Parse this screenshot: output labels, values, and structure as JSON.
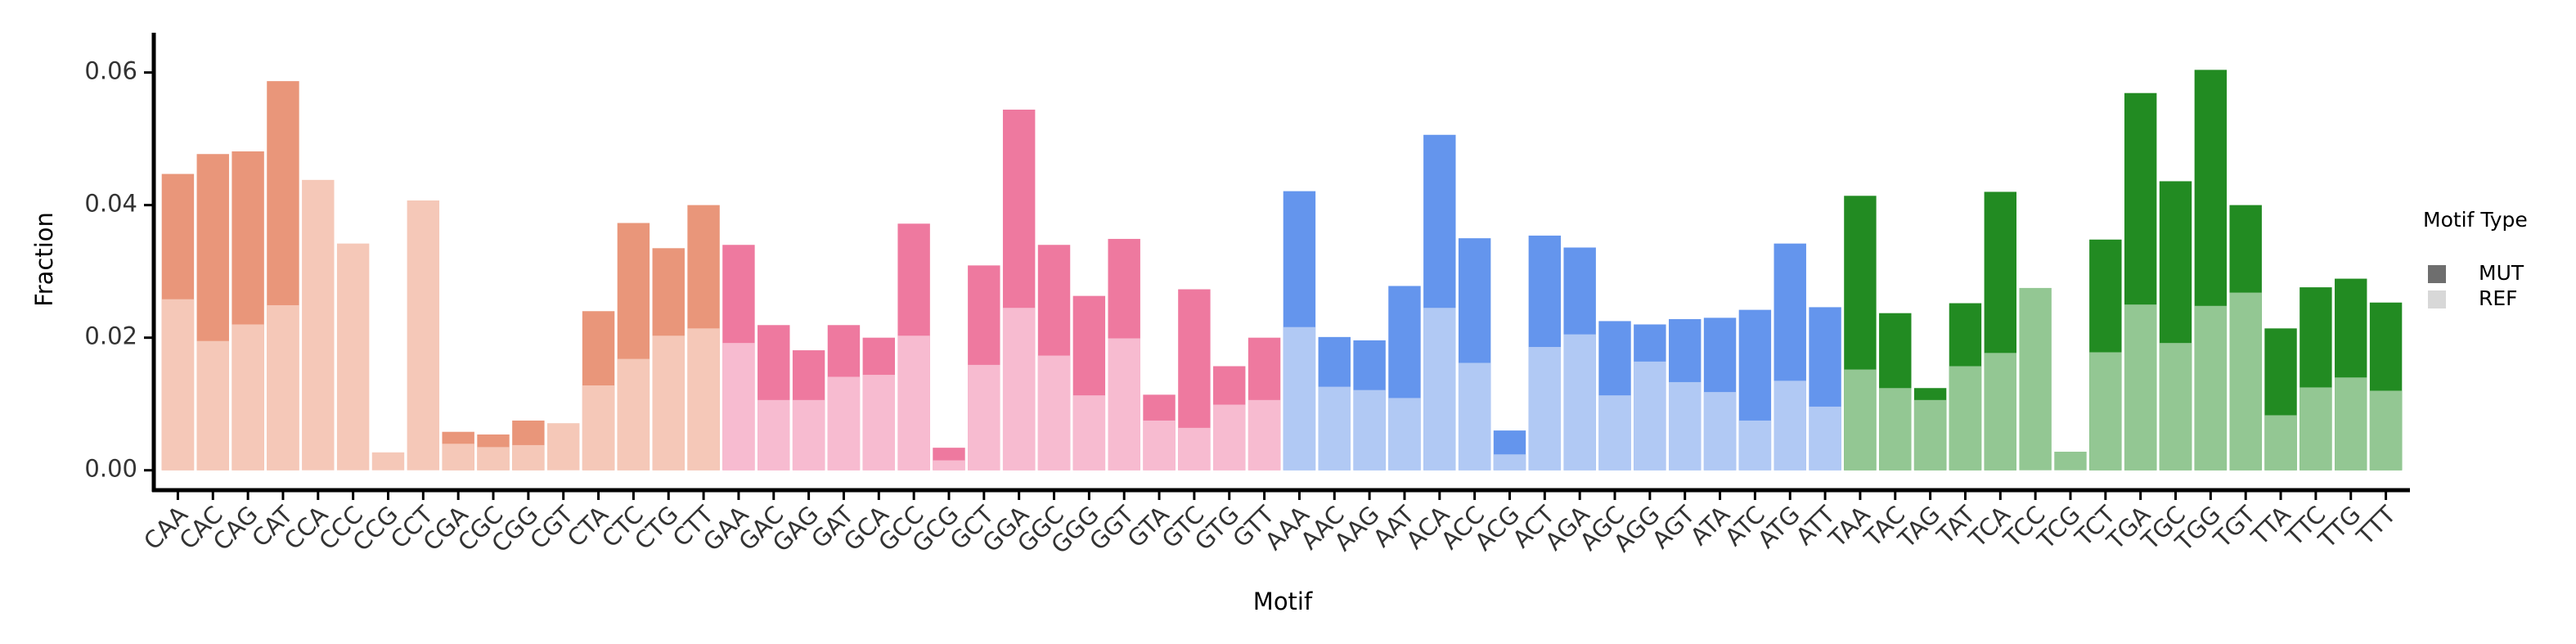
{
  "chart_data": {
    "type": "bar",
    "x_label": "Motif",
    "y_label": "Fraction",
    "legend_title": "Motif Type",
    "categories": [
      "CAA",
      "CAC",
      "CAG",
      "CAT",
      "CCA",
      "CCC",
      "CCG",
      "CCT",
      "CGA",
      "CGC",
      "CGG",
      "CGT",
      "CTA",
      "CTC",
      "CTG",
      "CTT",
      "GAA",
      "GAC",
      "GAG",
      "GAT",
      "GCA",
      "GCC",
      "GCG",
      "GCT",
      "GGA",
      "GGC",
      "GGG",
      "GGT",
      "GTA",
      "GTC",
      "GTG",
      "GTT",
      "AAA",
      "AAC",
      "AAG",
      "AAT",
      "ACA",
      "ACC",
      "ACG",
      "ACT",
      "AGA",
      "AGC",
      "AGG",
      "AGT",
      "ATA",
      "ATC",
      "ATG",
      "ATT",
      "TAA",
      "TAC",
      "TAG",
      "TAT",
      "TCA",
      "TCC",
      "TCG",
      "TCT",
      "TGA",
      "TGC",
      "TGG",
      "TGT",
      "TTA",
      "TTC",
      "TTG",
      "TTT"
    ],
    "series": [
      {
        "name": "MUT",
        "color": "#6e6e6e",
        "colors": [
          "#e9967a",
          "#ee799f",
          "#6495ed",
          "#228b22"
        ],
        "values": [
          0.0447,
          0.0477,
          0.0481,
          0.0587,
          null,
          null,
          null,
          null,
          0.0058,
          0.0054,
          0.0075,
          null,
          0.024,
          0.0373,
          0.0335,
          0.04,
          0.034,
          0.0219,
          0.0181,
          0.0219,
          0.02,
          0.0372,
          0.0034,
          0.0309,
          0.0544,
          0.034,
          0.0263,
          0.0349,
          0.0114,
          0.0273,
          0.0157,
          0.02,
          0.0421,
          0.0201,
          0.0196,
          0.0278,
          0.0506,
          0.035,
          0.006,
          0.0354,
          0.0336,
          0.0225,
          0.022,
          0.0228,
          0.023,
          0.0242,
          0.0342,
          0.0246,
          0.0414,
          0.0237,
          0.0124,
          0.0252,
          0.042,
          null,
          null,
          0.0348,
          0.0569,
          0.0436,
          0.0604,
          0.04,
          0.0214,
          0.0276,
          0.0289,
          0.0253
        ]
      },
      {
        "name": "REF",
        "color": "#d8d8d8",
        "colors": [
          "#f5c8b8",
          "#f7bbd0",
          "#b1c9f4",
          "#93c793"
        ],
        "values": [
          0.0258,
          0.0195,
          0.022,
          0.0249,
          0.0438,
          0.0342,
          0.0027,
          0.0407,
          0.004,
          0.0035,
          0.0038,
          0.0071,
          0.0128,
          0.0168,
          0.0203,
          0.0214,
          0.0192,
          0.0106,
          0.0106,
          0.0141,
          0.0144,
          0.0203,
          0.0015,
          0.0159,
          0.0245,
          0.0173,
          0.0113,
          0.0199,
          0.0075,
          0.0064,
          0.0099,
          0.0106,
          0.0216,
          0.0126,
          0.0121,
          0.0109,
          0.0245,
          0.0162,
          0.0024,
          0.0186,
          0.0205,
          0.0113,
          0.0164,
          0.0133,
          0.0118,
          0.0075,
          0.0135,
          0.0096,
          0.0152,
          0.0124,
          0.0106,
          0.0157,
          0.0177,
          0.0275,
          0.0028,
          0.0178,
          0.025,
          0.0192,
          0.0248,
          0.0268,
          0.0083,
          0.0125,
          0.014,
          0.012
        ]
      }
    ],
    "ylim": [
      -0.003,
      0.066
    ],
    "yticks": [
      {
        "value": 0,
        "label": "0.00"
      },
      {
        "value": 0.02,
        "label": "0.02"
      },
      {
        "value": 0.04,
        "label": "0.04"
      },
      {
        "value": 0.06,
        "label": "0.06"
      }
    ]
  }
}
